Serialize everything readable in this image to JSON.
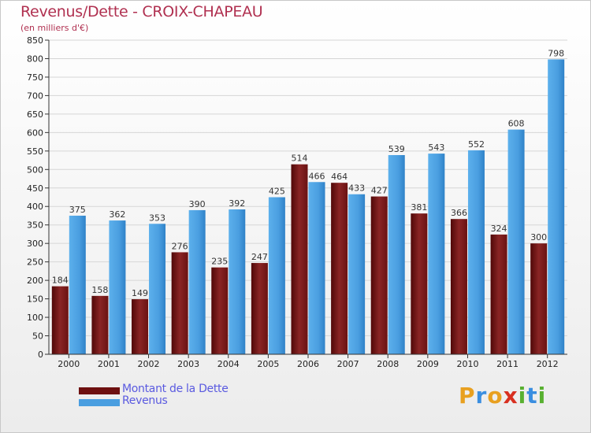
{
  "header": {
    "title": "Revenus/Dette - CROIX-CHAPEAU",
    "subtitle": "(en milliers d'€)"
  },
  "legend": {
    "items": [
      {
        "label": "Montant de la Dette",
        "color": "#6e1010"
      },
      {
        "label": "Revenus",
        "color": "#4a9ee0"
      }
    ]
  },
  "brand": {
    "letters": [
      {
        "char": "P",
        "color": "#e8a020"
      },
      {
        "char": "r",
        "color": "#3a8ee0"
      },
      {
        "char": "o",
        "color": "#e8a020"
      },
      {
        "char": "x",
        "color": "#d83020"
      },
      {
        "char": "i",
        "color": "#58b030"
      },
      {
        "char": "t",
        "color": "#3a8ee0"
      },
      {
        "char": "i",
        "color": "#58b030"
      }
    ]
  },
  "chart_data": {
    "type": "bar",
    "categories": [
      "2000",
      "2001",
      "2002",
      "2003",
      "2004",
      "2005",
      "2006",
      "2007",
      "2008",
      "2009",
      "2010",
      "2011",
      "2012"
    ],
    "series": [
      {
        "name": "Montant de la Dette",
        "color": "#6e1010",
        "values": [
          184,
          158,
          149,
          276,
          235,
          247,
          514,
          464,
          427,
          381,
          366,
          324,
          300
        ]
      },
      {
        "name": "Revenus",
        "color": "#4a9ee0",
        "values": [
          375,
          362,
          353,
          390,
          392,
          425,
          466,
          433,
          539,
          543,
          552,
          608,
          798
        ]
      }
    ],
    "ylim": [
      0,
      850
    ],
    "yticks": [
      0,
      50,
      100,
      150,
      200,
      250,
      300,
      350,
      400,
      450,
      500,
      550,
      600,
      650,
      700,
      750,
      800,
      850
    ],
    "grid": true
  }
}
